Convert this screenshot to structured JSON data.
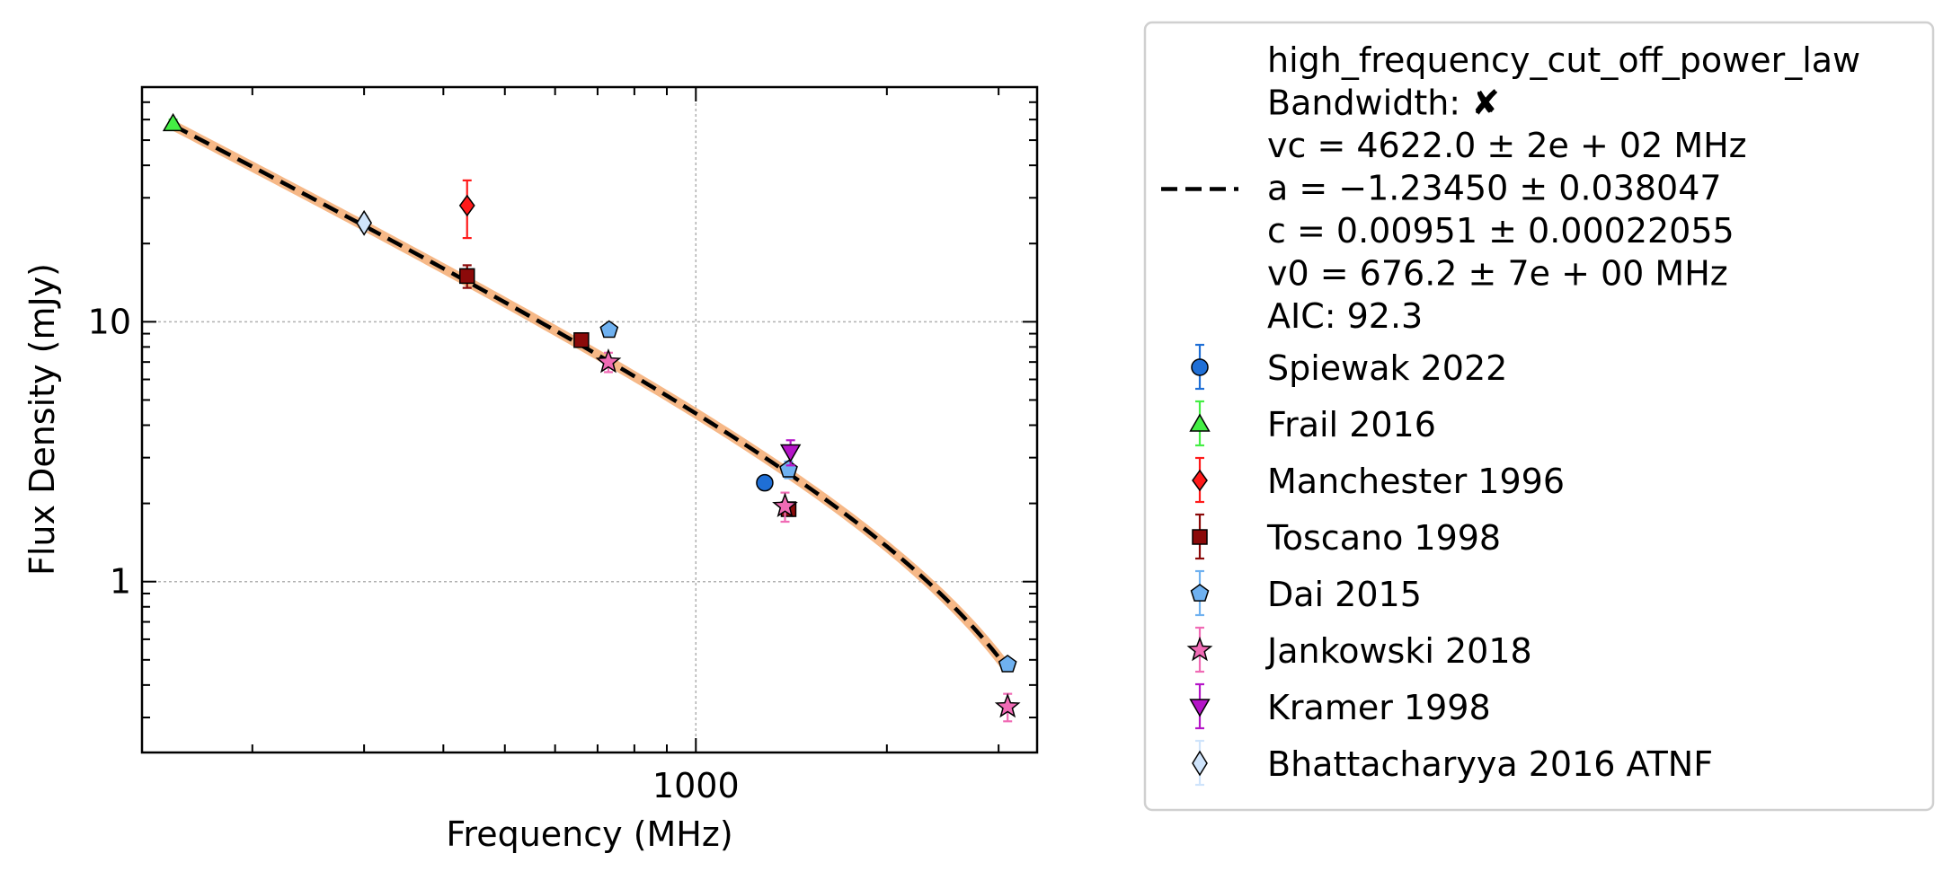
{
  "chart_data": {
    "type": "scatter",
    "xlabel": "Frequency (MHz)",
    "ylabel": "Flux Density (mJy)",
    "xscale": "log",
    "yscale": "log",
    "xlim": [
      134,
      3450
    ],
    "ylim": [
      0.22,
      80
    ],
    "xticks": [
      {
        "value": 1000,
        "label": "1000"
      }
    ],
    "yticks": [
      {
        "value": 1,
        "label": "1"
      },
      {
        "value": 10,
        "label": "10"
      }
    ],
    "grid": true,
    "legend_position": "outside-right",
    "fit": {
      "model": "high_frequency_cut_off_power_law",
      "lines": [
        "high_frequency_cut_off_power_law",
        "Bandwidth: ✘",
        "vc = 4622.0 ± 2e + 02 MHz",
        "a = −1.23450 ± 0.038047",
        "c = 0.00951 ± 0.00022055",
        "v0 = 676.2 ± 7e + 00 MHz",
        "AIC: 92.3"
      ],
      "vc": 4622.0,
      "a": -1.2345,
      "c": 0.00951,
      "v0": 676.2,
      "x_range": [
        150,
        3100
      ],
      "line_color": "#000000",
      "band_color": "#f5b07a"
    },
    "series": [
      {
        "name": "Spiewak 2022",
        "marker": "circle",
        "color": "#1f6fd6",
        "errcolor": "#1f6fd6",
        "points": [
          {
            "x": 1284,
            "y": 2.4,
            "err": 0.1
          }
        ]
      },
      {
        "name": "Frail 2016",
        "marker": "triangle-up",
        "color": "#44ee44",
        "errcolor": "#44ee44",
        "points": [
          {
            "x": 150,
            "y": 58,
            "err": 2
          }
        ]
      },
      {
        "name": "Manchester 1996",
        "marker": "diamond",
        "color": "#ff1a1a",
        "errcolor": "#ff1a1a",
        "points": [
          {
            "x": 436,
            "y": 28,
            "err": 7
          }
        ]
      },
      {
        "name": "Toscano 1998",
        "marker": "square",
        "color": "#8b0a0a",
        "errcolor": "#8b0a0a",
        "points": [
          {
            "x": 436,
            "y": 15,
            "err": 1.5
          },
          {
            "x": 660,
            "y": 8.5,
            "err": 0.3
          },
          {
            "x": 1400,
            "y": 1.9,
            "err": 0.1
          }
        ]
      },
      {
        "name": "Dai 2015",
        "marker": "pentagon",
        "color": "#6fb1f0",
        "errcolor": "#6fb1f0",
        "points": [
          {
            "x": 730,
            "y": 9.3,
            "err": 0.3
          },
          {
            "x": 1400,
            "y": 2.7,
            "err": 0.2
          },
          {
            "x": 3100,
            "y": 0.48,
            "err": 0.02
          }
        ]
      },
      {
        "name": "Jankowski 2018",
        "marker": "star",
        "color": "#f06bb5",
        "errcolor": "#f06bb5",
        "points": [
          {
            "x": 728,
            "y": 7.0,
            "err": 0.6
          },
          {
            "x": 1382,
            "y": 1.95,
            "err": 0.25
          },
          {
            "x": 3100,
            "y": 0.33,
            "err": 0.04
          }
        ]
      },
      {
        "name": "Kramer 1998",
        "marker": "triangle-down",
        "color": "#b515c8",
        "errcolor": "#b515c8",
        "points": [
          {
            "x": 1410,
            "y": 3.15,
            "err": 0.35
          }
        ]
      },
      {
        "name": "Bhattacharyya 2016 ATNF",
        "marker": "thin-diamond",
        "color": "#cfe4fb",
        "errcolor": "#cfe4fb",
        "points": [
          {
            "x": 300,
            "y": 24,
            "err": 1.5
          }
        ]
      }
    ]
  }
}
